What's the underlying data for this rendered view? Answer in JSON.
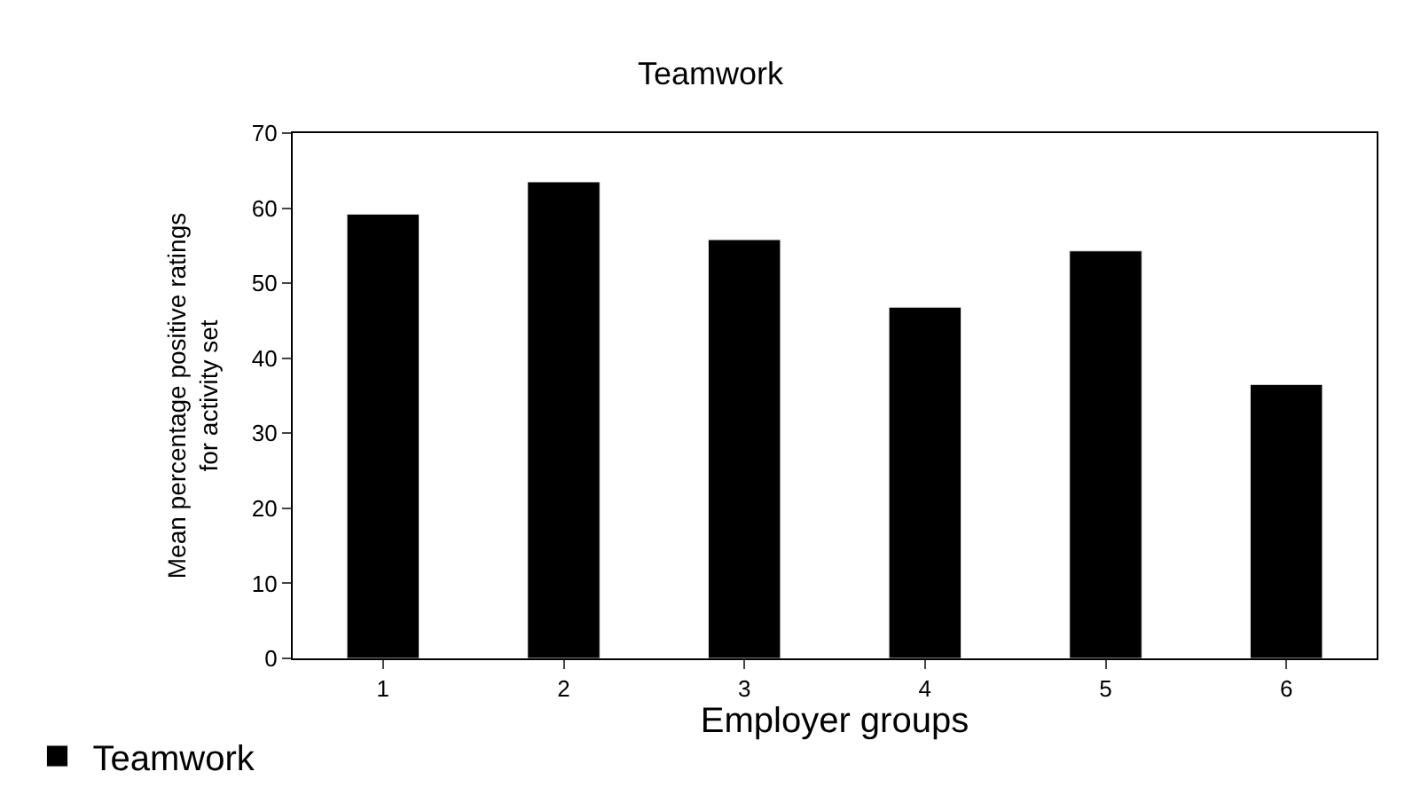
{
  "chart_data": {
    "type": "bar",
    "title": "Teamwork",
    "xlabel": "Employer groups",
    "ylabel": "Mean percentage positive ratings for activity set",
    "categories": [
      "1",
      "2",
      "3",
      "4",
      "5",
      "6"
    ],
    "series": [
      {
        "name": "Teamwork",
        "color": "#000000",
        "values": [
          59.2,
          63.5,
          55.8,
          46.8,
          54.3,
          36.5
        ]
      }
    ],
    "ylim": [
      0,
      70
    ],
    "yticks": [
      0,
      10,
      20,
      30,
      40,
      50,
      60,
      70
    ],
    "legend": "bottom left"
  }
}
